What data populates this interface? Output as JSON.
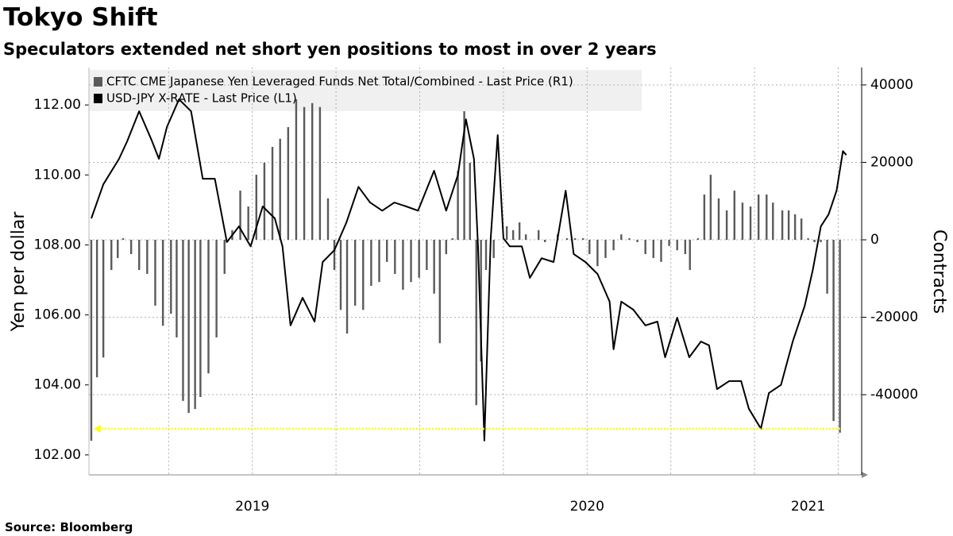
{
  "chart_data": {
    "type": "line-bar",
    "title": "Tokyo Shift",
    "subtitle": "Speculators extended net short yen positions to most in over 2 years",
    "source": "Source: Bloomberg",
    "y_label": "Yen per dollar",
    "y2_label": "Contracts",
    "xlim": [
      2019.012,
      2021.32
    ],
    "xticks": [
      {
        "value": 2019.5,
        "label": "2019"
      },
      {
        "value": 2020.5,
        "label": "2020"
      },
      {
        "value": 2021.16,
        "label": "2021"
      }
    ],
    "x_grid": [
      2019.25,
      2019.5,
      2019.75,
      2020.0,
      2020.25,
      2020.5,
      2020.75,
      2021.0,
      2021.25
    ],
    "ylim": [
      101.43,
      113.07
    ],
    "yticks": [
      {
        "value": 102,
        "label": "102.00"
      },
      {
        "value": 104,
        "label": "104.00"
      },
      {
        "value": 106,
        "label": "106.00"
      },
      {
        "value": 108,
        "label": "108.00"
      },
      {
        "value": 110,
        "label": "110.00"
      },
      {
        "value": 112,
        "label": "112.00"
      }
    ],
    "y2lim": [
      -60700,
      44500
    ],
    "y2ticks": [
      -40000,
      -20000,
      0,
      20000,
      40000
    ],
    "grid": true,
    "series": [
      {
        "name": "CFTC CME Japanese Yen Leveraged Funds Net Total/Combined - Last Price (R1)",
        "kind": "bar",
        "axis": "y2",
        "color": "#5a5a5a",
        "x": [
          2019.019,
          2019.036,
          2019.055,
          2019.079,
          2019.098,
          2019.114,
          2019.138,
          2019.162,
          2019.186,
          2019.21,
          2019.233,
          2019.257,
          2019.274,
          2019.293,
          2019.31,
          2019.329,
          2019.345,
          2019.369,
          2019.393,
          2019.417,
          2019.44,
          2019.464,
          2019.488,
          2019.512,
          2019.536,
          2019.56,
          2019.583,
          2019.607,
          2019.631,
          2019.655,
          2019.679,
          2019.702,
          2019.726,
          2019.745,
          2019.764,
          2019.783,
          2019.807,
          2019.831,
          2019.855,
          2019.879,
          2019.902,
          2019.926,
          2019.95,
          2019.974,
          2019.998,
          2020.021,
          2020.043,
          2020.06,
          2020.079,
          2020.098,
          2020.114,
          2020.133,
          2020.15,
          2020.169,
          2020.183,
          2020.198,
          2020.221,
          2020.26,
          2020.279,
          2020.298,
          2020.317,
          2020.355,
          2020.374,
          2020.412,
          2020.44,
          2020.464,
          2020.488,
          2020.507,
          2020.531,
          2020.555,
          2020.579,
          2020.602,
          2020.626,
          2020.65,
          2020.674,
          2020.698,
          2020.721,
          2020.745,
          2020.769,
          2020.793,
          2020.807,
          2020.831,
          2020.85,
          2020.869,
          2020.893,
          2020.917,
          2020.94,
          2020.964,
          2020.988,
          2021.012,
          2021.036,
          2021.055,
          2021.083,
          2021.102,
          2021.121,
          2021.14,
          2021.16,
          2021.179,
          2021.198,
          2021.217,
          2021.236,
          2021.255
        ],
        "values": [
          -51900,
          -35500,
          -30400,
          -7800,
          -4700,
          400,
          -3700,
          -7800,
          -8800,
          -17000,
          -22200,
          -19100,
          -25200,
          -41600,
          -44700,
          -43700,
          -40600,
          -34500,
          -25200,
          -8800,
          2500,
          12700,
          8600,
          16800,
          19900,
          24000,
          26100,
          29100,
          36300,
          34300,
          35300,
          34300,
          10700,
          -7800,
          -18100,
          -24200,
          -17000,
          -18100,
          -11900,
          -10900,
          -5700,
          -8800,
          -12900,
          -10900,
          -9800,
          -7800,
          -13900,
          -26700,
          -3700,
          400,
          17800,
          33200,
          19900,
          -42700,
          -31400,
          -7800,
          -4700,
          3500,
          2500,
          4500,
          1400,
          2500,
          -600,
          1400,
          400,
          400,
          400,
          -3700,
          -6800,
          -4700,
          -2700,
          1400,
          400,
          -600,
          -3700,
          -4700,
          -5700,
          -1600,
          -2700,
          -3700,
          -7800,
          400,
          11700,
          16800,
          10700,
          7600,
          12700,
          9600,
          8600,
          11700,
          11700,
          9600,
          7600,
          7600,
          6600,
          5500,
          400,
          -600,
          -600,
          -13900,
          -46800,
          -49800
        ]
      },
      {
        "name": "USD-JPY X-RATE - Last Price (L1)",
        "kind": "line",
        "axis": "y",
        "color": "#000000",
        "x": [
          2019.019,
          2019.055,
          2019.102,
          2019.126,
          2019.162,
          2019.198,
          2019.221,
          2019.245,
          2019.281,
          2019.317,
          2019.352,
          2019.388,
          2019.424,
          2019.46,
          2019.495,
          2019.531,
          2019.567,
          2019.59,
          2019.614,
          2019.65,
          2019.686,
          2019.71,
          2019.745,
          2019.781,
          2019.817,
          2019.852,
          2019.888,
          2019.924,
          2019.96,
          2019.995,
          2020.043,
          2020.079,
          2020.114,
          2020.138,
          2020.162,
          2020.174,
          2020.193,
          2020.212,
          2020.233,
          2020.25,
          2020.269,
          2020.305,
          2020.329,
          2020.364,
          2020.4,
          2020.436,
          2020.46,
          2020.495,
          2020.531,
          2020.567,
          2020.579,
          2020.602,
          2020.638,
          2020.674,
          2020.71,
          2020.733,
          2020.769,
          2020.805,
          2020.84,
          2020.864,
          2020.888,
          2020.924,
          2020.96,
          2020.983,
          2021.019,
          2021.043,
          2021.079,
          2021.114,
          2021.15,
          2021.174,
          2021.198,
          2021.221,
          2021.245,
          2021.264,
          2021.274
        ],
        "values": [
          108.76,
          109.73,
          110.46,
          110.96,
          111.82,
          111.02,
          110.46,
          111.37,
          112.16,
          111.82,
          109.89,
          109.89,
          108.08,
          108.53,
          107.96,
          109.1,
          108.76,
          107.96,
          105.7,
          106.49,
          105.81,
          107.51,
          107.85,
          108.64,
          109.66,
          109.21,
          108.98,
          109.21,
          109.1,
          108.98,
          110.12,
          108.98,
          110.0,
          111.59,
          110.46,
          107.96,
          102.41,
          108.19,
          111.14,
          108.19,
          107.96,
          107.96,
          107.06,
          107.62,
          107.51,
          109.55,
          107.74,
          107.51,
          107.17,
          106.38,
          105.02,
          106.38,
          106.15,
          105.7,
          105.81,
          104.79,
          105.92,
          104.79,
          105.24,
          105.13,
          103.88,
          104.11,
          104.11,
          103.32,
          102.75,
          103.77,
          104.0,
          105.24,
          106.26,
          107.28,
          108.53,
          108.87,
          109.55,
          110.68,
          110.57
        ]
      }
    ],
    "annotation_line": {
      "axis": "y2",
      "value": -48800,
      "x": [
        2019.026,
        2021.257
      ],
      "color": "#ffff00"
    }
  }
}
